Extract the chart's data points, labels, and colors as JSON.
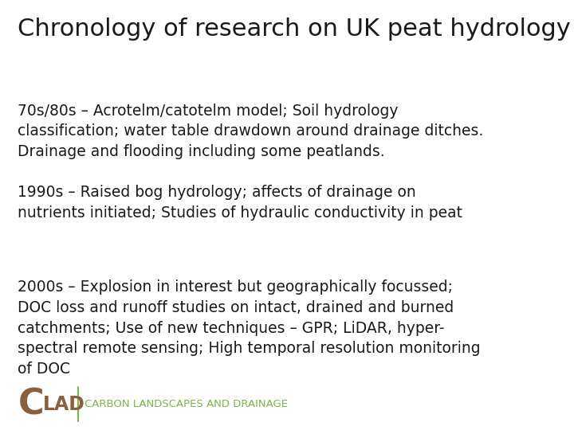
{
  "title": "Chronology of research on UK peat hydrology",
  "background_color": "#ffffff",
  "title_color": "#1a1a1a",
  "title_fontsize": 22,
  "title_font": "DejaVu Sans",
  "body_color": "#1a1a1a",
  "body_fontsize": 13.5,
  "paragraphs": [
    "70s/80s – Acrotelm/catotelm model; Soil hydrology\nclassification; water table drawdown around drainage ditches.\nDrainage and flooding including some peatlands.",
    "1990s – Raised bog hydrology; affects of drainage on\nnutrients initiated; Studies of hydraulic conductivity in peat",
    "2000s – Explosion in interest but geographically focussed;\nDOC loss and runoff studies on intact, drained and burned\ncatchments; Use of new techniques – GPR; LiDAR, hyper-\nspectral remote sensing; High temporal resolution monitoring\nof DOC"
  ],
  "logo_color": "#7ab648",
  "logo_brown": "#8B5E3C",
  "divider_color": "#7ab648",
  "logo_subtext": "CARBON LANDSCAPES AND DRAINAGE"
}
